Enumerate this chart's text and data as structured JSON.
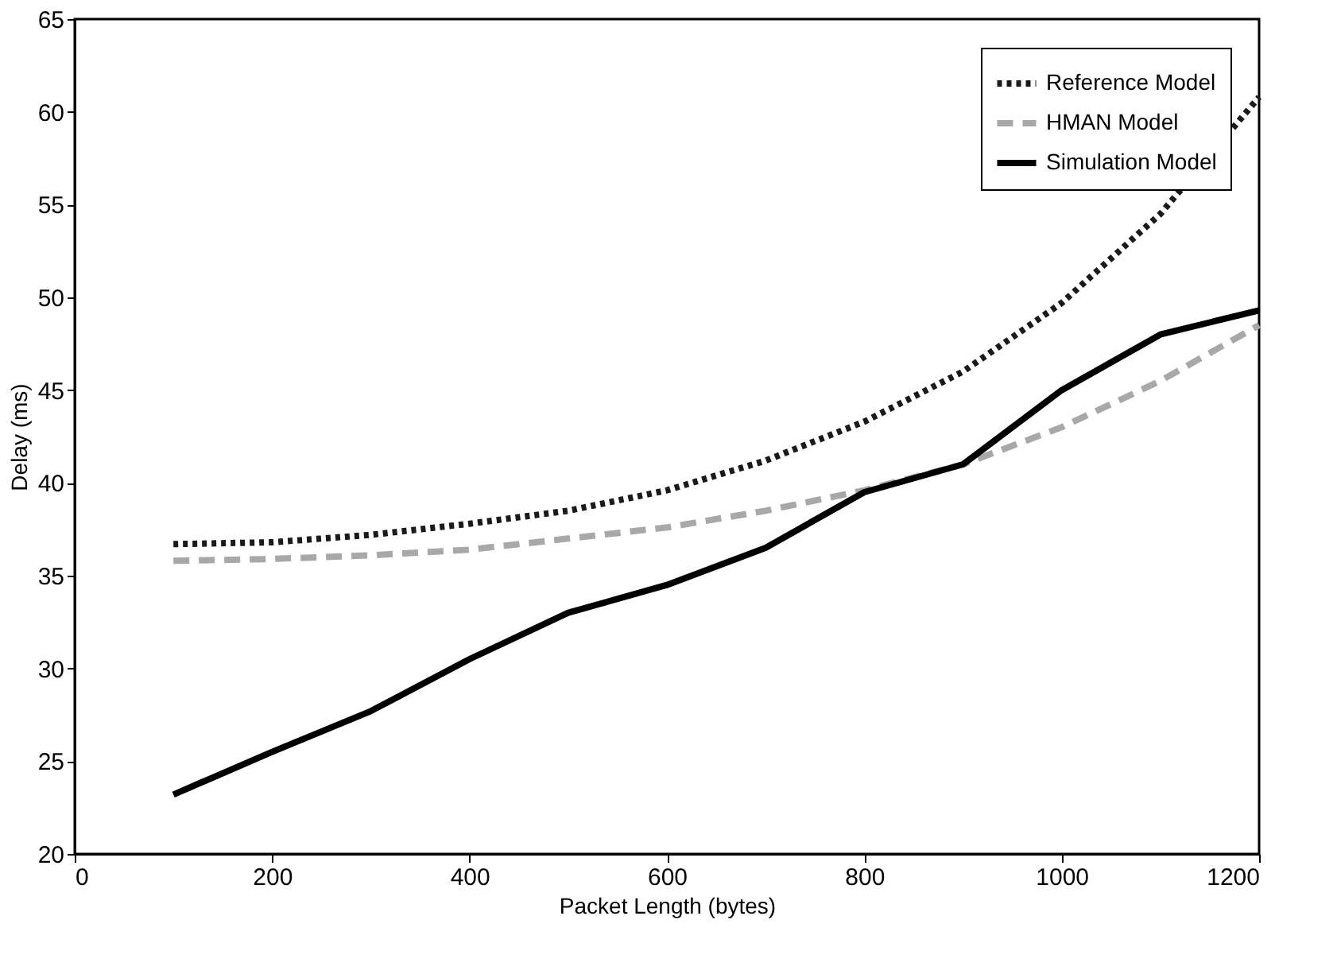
{
  "chart_data": {
    "type": "line",
    "xlabel": "Packet Length (bytes)",
    "ylabel": "Delay (ms)",
    "x": [
      100,
      200,
      300,
      400,
      500,
      600,
      700,
      800,
      900,
      1000,
      1100,
      1200
    ],
    "series": [
      {
        "name": "Reference Model",
        "color": "#1a1a1a",
        "line_style": "dotted",
        "values": [
          36.7,
          36.8,
          37.2,
          37.8,
          38.5,
          39.6,
          41.2,
          43.3,
          46,
          49.7,
          54.5,
          60.8
        ]
      },
      {
        "name": "HMAN Model",
        "color": "#a8a8a8",
        "line_style": "dashed",
        "values": [
          35.8,
          35.9,
          36.1,
          36.4,
          37,
          37.6,
          38.5,
          39.6,
          41,
          43,
          45.5,
          48.5
        ]
      },
      {
        "name": "Simulation Model",
        "color": "#000000",
        "line_style": "solid",
        "values": [
          23.2,
          25.5,
          27.7,
          30.5,
          33,
          34.5,
          36.5,
          39.5,
          41,
          45,
          48,
          49.3
        ]
      }
    ],
    "xlim": [
      0,
      1200
    ],
    "xticks": [
      0,
      200,
      400,
      600,
      800,
      1000,
      1200
    ],
    "ylim": [
      20,
      65
    ],
    "yticks": [
      20,
      25,
      30,
      35,
      40,
      45,
      50,
      55,
      60,
      65
    ],
    "grid": false,
    "legend": "top right",
    "marker": "none"
  }
}
